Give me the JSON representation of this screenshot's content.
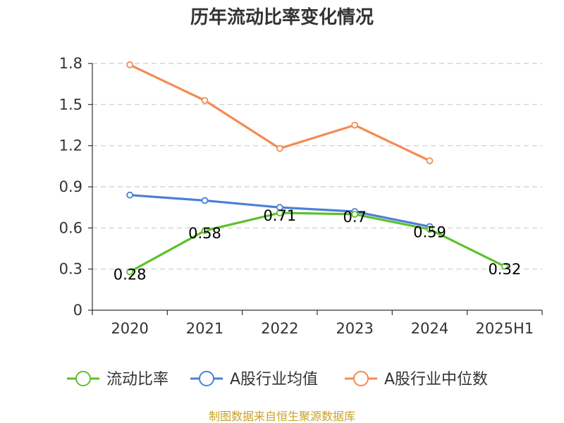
{
  "chart_data": {
    "type": "line",
    "title": "历年流动比率变化情况",
    "categories": [
      "2020",
      "2021",
      "2022",
      "2023",
      "2024",
      "2025H1"
    ],
    "y_ticks": [
      "0",
      "0.3",
      "0.6",
      "0.9",
      "1.2",
      "1.5",
      "1.8"
    ],
    "ylim": [
      0,
      1.8
    ],
    "grid": true,
    "legend_position": "bottom",
    "series": [
      {
        "name": "流动比率",
        "color": "#5cc12c",
        "values": [
          0.28,
          0.58,
          0.71,
          0.7,
          0.59,
          0.32
        ],
        "labels": [
          "0.28",
          "0.58",
          "0.71",
          "0.7",
          "0.59",
          "0.32"
        ]
      },
      {
        "name": "A股行业均值",
        "color": "#4a7fd6",
        "values": [
          0.84,
          0.8,
          0.75,
          0.72,
          0.61,
          null
        ]
      },
      {
        "name": "A股行业中位数",
        "color": "#f28c54",
        "values": [
          1.79,
          1.53,
          1.18,
          1.35,
          1.09,
          null
        ]
      }
    ],
    "source": "制图数据来自恒生聚源数据库"
  }
}
